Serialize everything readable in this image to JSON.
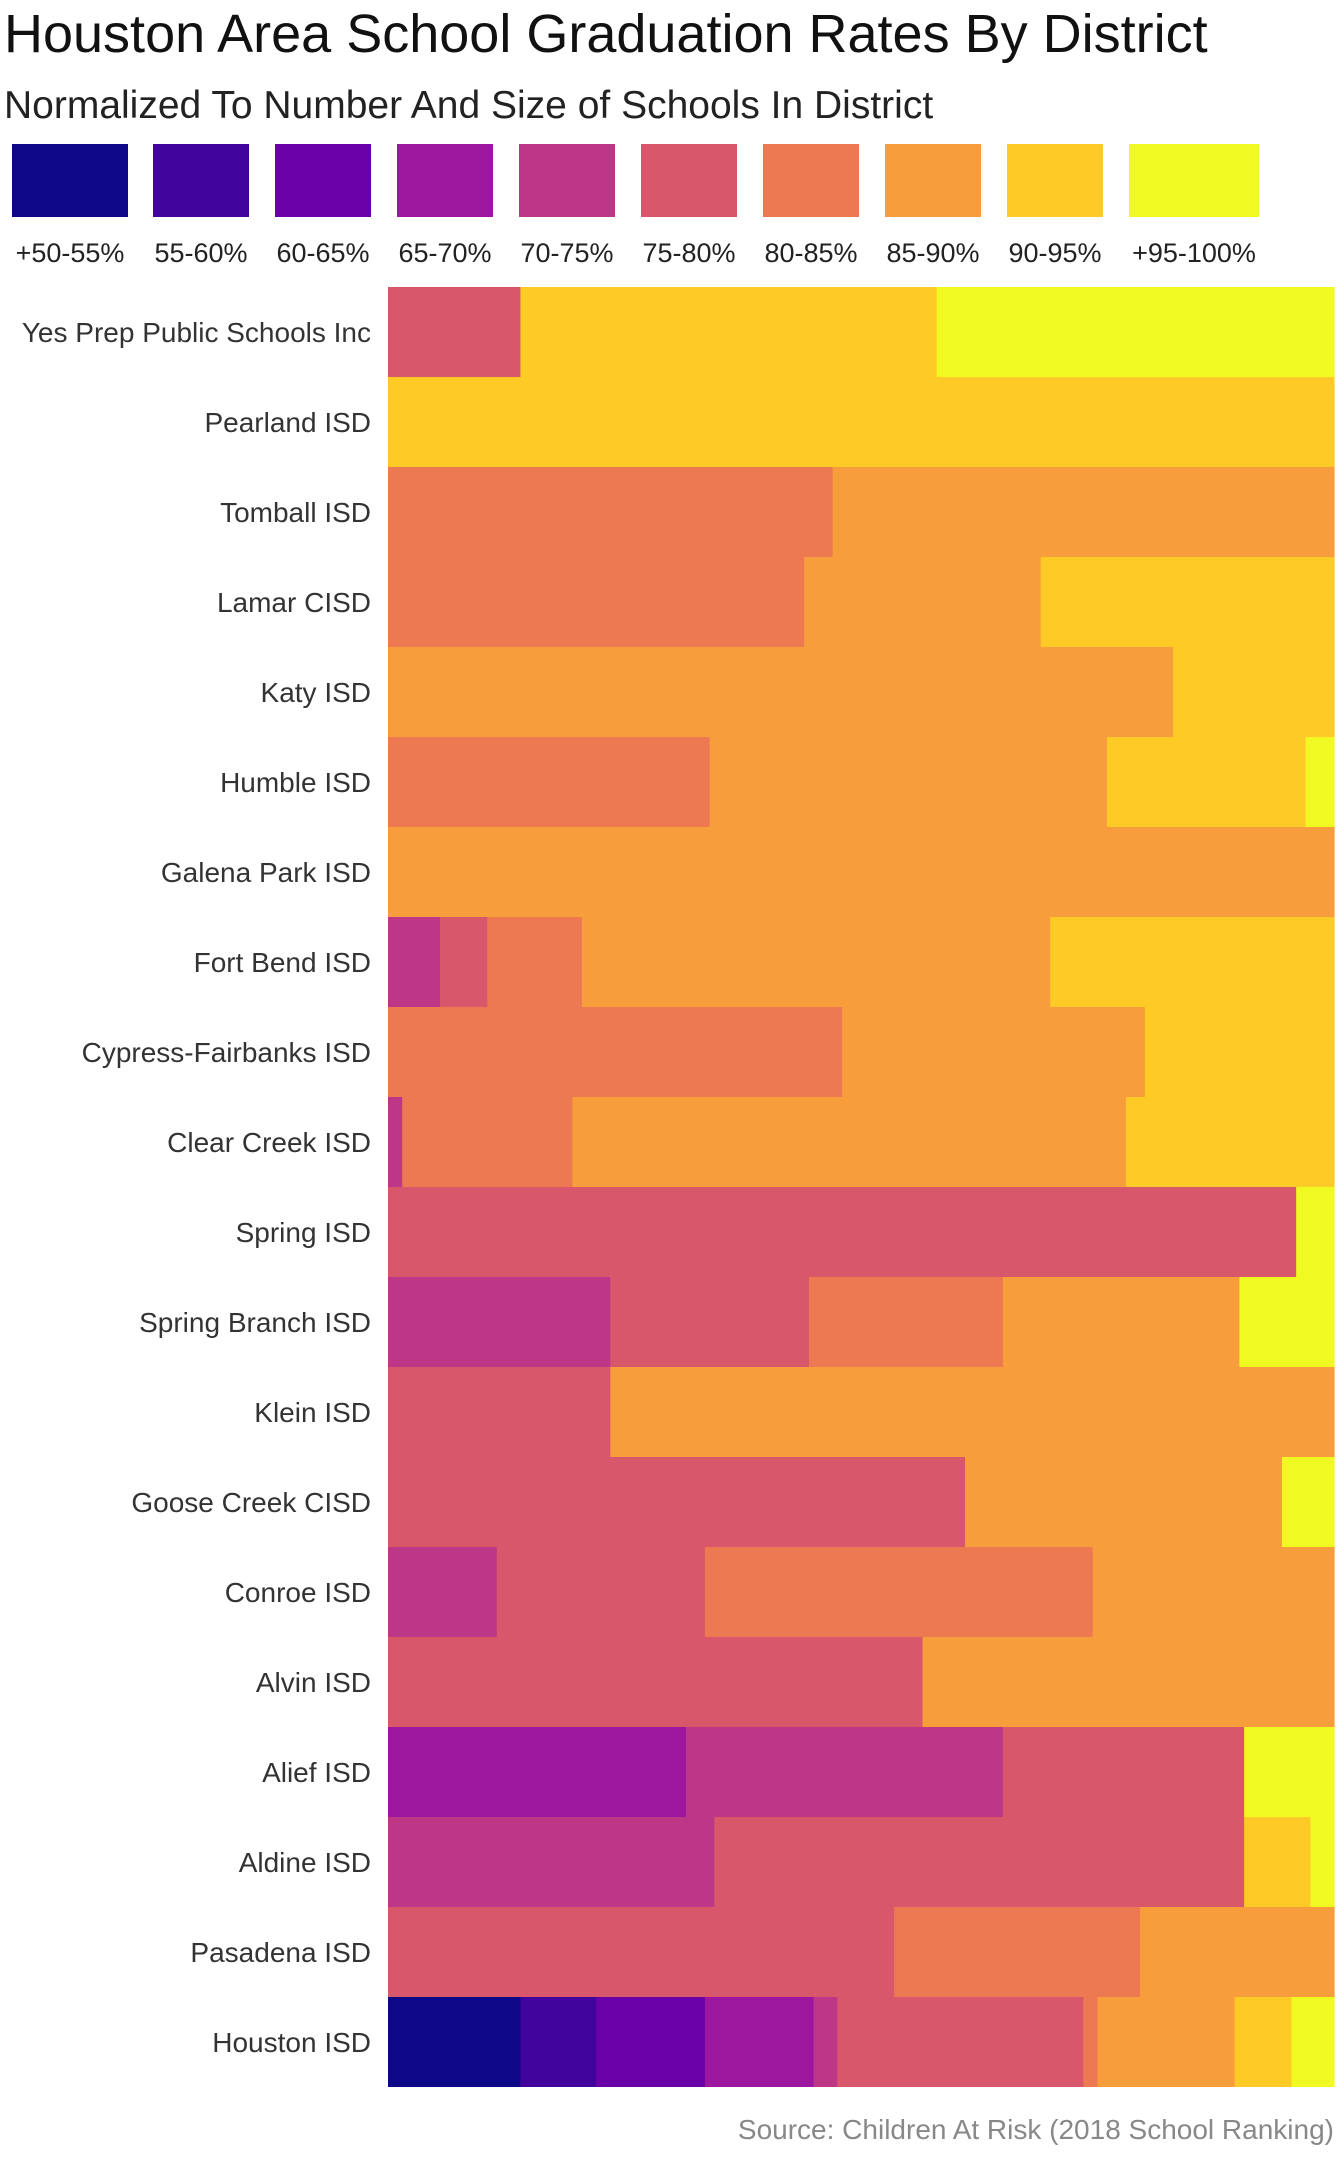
{
  "chart_data": {
    "type": "heatmap",
    "title": "Houston Area School Graduation Rates By District",
    "subtitle": "Normalized To Number And Size of Schools In District",
    "source": "Source: Children At Risk (2018 School Ranking)",
    "legend": {
      "placement": "top",
      "entries": [
        {
          "label": "+50-55%",
          "color": "#0d0887"
        },
        {
          "label": "55-60%",
          "color": "#41049d"
        },
        {
          "label": "60-65%",
          "color": "#6a00a8"
        },
        {
          "label": "65-70%",
          "color": "#9c179e"
        },
        {
          "label": "70-75%",
          "color": "#bd3786"
        },
        {
          "label": "75-80%",
          "color": "#d8576b"
        },
        {
          "label": "80-85%",
          "color": "#ed7953"
        },
        {
          "label": "85-90%",
          "color": "#f89d3c"
        },
        {
          "label": "90-95%",
          "color": "#fdca26"
        },
        {
          "label": "+95-100%",
          "color": "#f0f921"
        }
      ]
    },
    "districts": [
      {
        "name": "Yes Prep Public Schools Inc",
        "shares": [
          0,
          0,
          0,
          0,
          0,
          0.14,
          0,
          0,
          0.44,
          0.42
        ]
      },
      {
        "name": "Pearland ISD",
        "shares": [
          0,
          0,
          0,
          0,
          0,
          0,
          0,
          0,
          1.0,
          0
        ]
      },
      {
        "name": "Tomball ISD",
        "shares": [
          0,
          0,
          0,
          0,
          0,
          0,
          0.47,
          0.53,
          0,
          0
        ]
      },
      {
        "name": "Lamar CISD",
        "shares": [
          0,
          0,
          0,
          0,
          0,
          0,
          0.44,
          0.25,
          0.31,
          0
        ]
      },
      {
        "name": "Katy ISD",
        "shares": [
          0,
          0,
          0,
          0,
          0,
          0,
          0,
          0.83,
          0.17,
          0
        ]
      },
      {
        "name": "Humble ISD",
        "shares": [
          0,
          0,
          0,
          0,
          0,
          0,
          0.34,
          0.42,
          0.21,
          0.03
        ]
      },
      {
        "name": "Galena Park ISD",
        "shares": [
          0,
          0,
          0,
          0,
          0,
          0,
          0,
          1.0,
          0,
          0
        ]
      },
      {
        "name": "Fort Bend ISD",
        "shares": [
          0,
          0,
          0,
          0,
          0.055,
          0.05,
          0.1,
          0.495,
          0.3,
          0
        ]
      },
      {
        "name": "Cypress-Fairbanks ISD",
        "shares": [
          0,
          0,
          0,
          0,
          0,
          0,
          0.48,
          0.32,
          0.2,
          0
        ]
      },
      {
        "name": "Clear Creek ISD",
        "shares": [
          0,
          0,
          0,
          0,
          0.015,
          0,
          0.18,
          0.585,
          0.22,
          0
        ]
      },
      {
        "name": "Spring ISD",
        "shares": [
          0,
          0,
          0,
          0,
          0,
          0.96,
          0,
          0,
          0,
          0.04
        ]
      },
      {
        "name": "Spring Branch ISD",
        "shares": [
          0,
          0,
          0,
          0,
          0.235,
          0.21,
          0.205,
          0.25,
          0,
          0.1
        ]
      },
      {
        "name": "Klein ISD",
        "shares": [
          0,
          0,
          0,
          0,
          0,
          0.235,
          0,
          0.765,
          0,
          0
        ]
      },
      {
        "name": "Goose Creek CISD",
        "shares": [
          0,
          0,
          0,
          0,
          0,
          0.61,
          0,
          0.335,
          0,
          0.055
        ]
      },
      {
        "name": "Conroe ISD",
        "shares": [
          0,
          0,
          0,
          0,
          0.115,
          0.22,
          0.41,
          0.255,
          0,
          0
        ]
      },
      {
        "name": "Alvin ISD",
        "shares": [
          0,
          0,
          0,
          0,
          0,
          0.565,
          0,
          0.435,
          0,
          0
        ]
      },
      {
        "name": "Alief ISD",
        "shares": [
          0,
          0,
          0,
          0.315,
          0.335,
          0.255,
          0,
          0,
          0,
          0.095
        ]
      },
      {
        "name": "Aldine ISD",
        "shares": [
          0,
          0,
          0,
          0,
          0.345,
          0.56,
          0,
          0,
          0.07,
          0.025
        ]
      },
      {
        "name": "Pasadena ISD",
        "shares": [
          0,
          0,
          0,
          0,
          0,
          0.535,
          0.26,
          0.205,
          0,
          0
        ]
      },
      {
        "name": "Houston ISD",
        "shares": [
          0.14,
          0.08,
          0.115,
          0.115,
          0.025,
          0.26,
          0.015,
          0.145,
          0.06,
          0.045
        ]
      }
    ]
  }
}
